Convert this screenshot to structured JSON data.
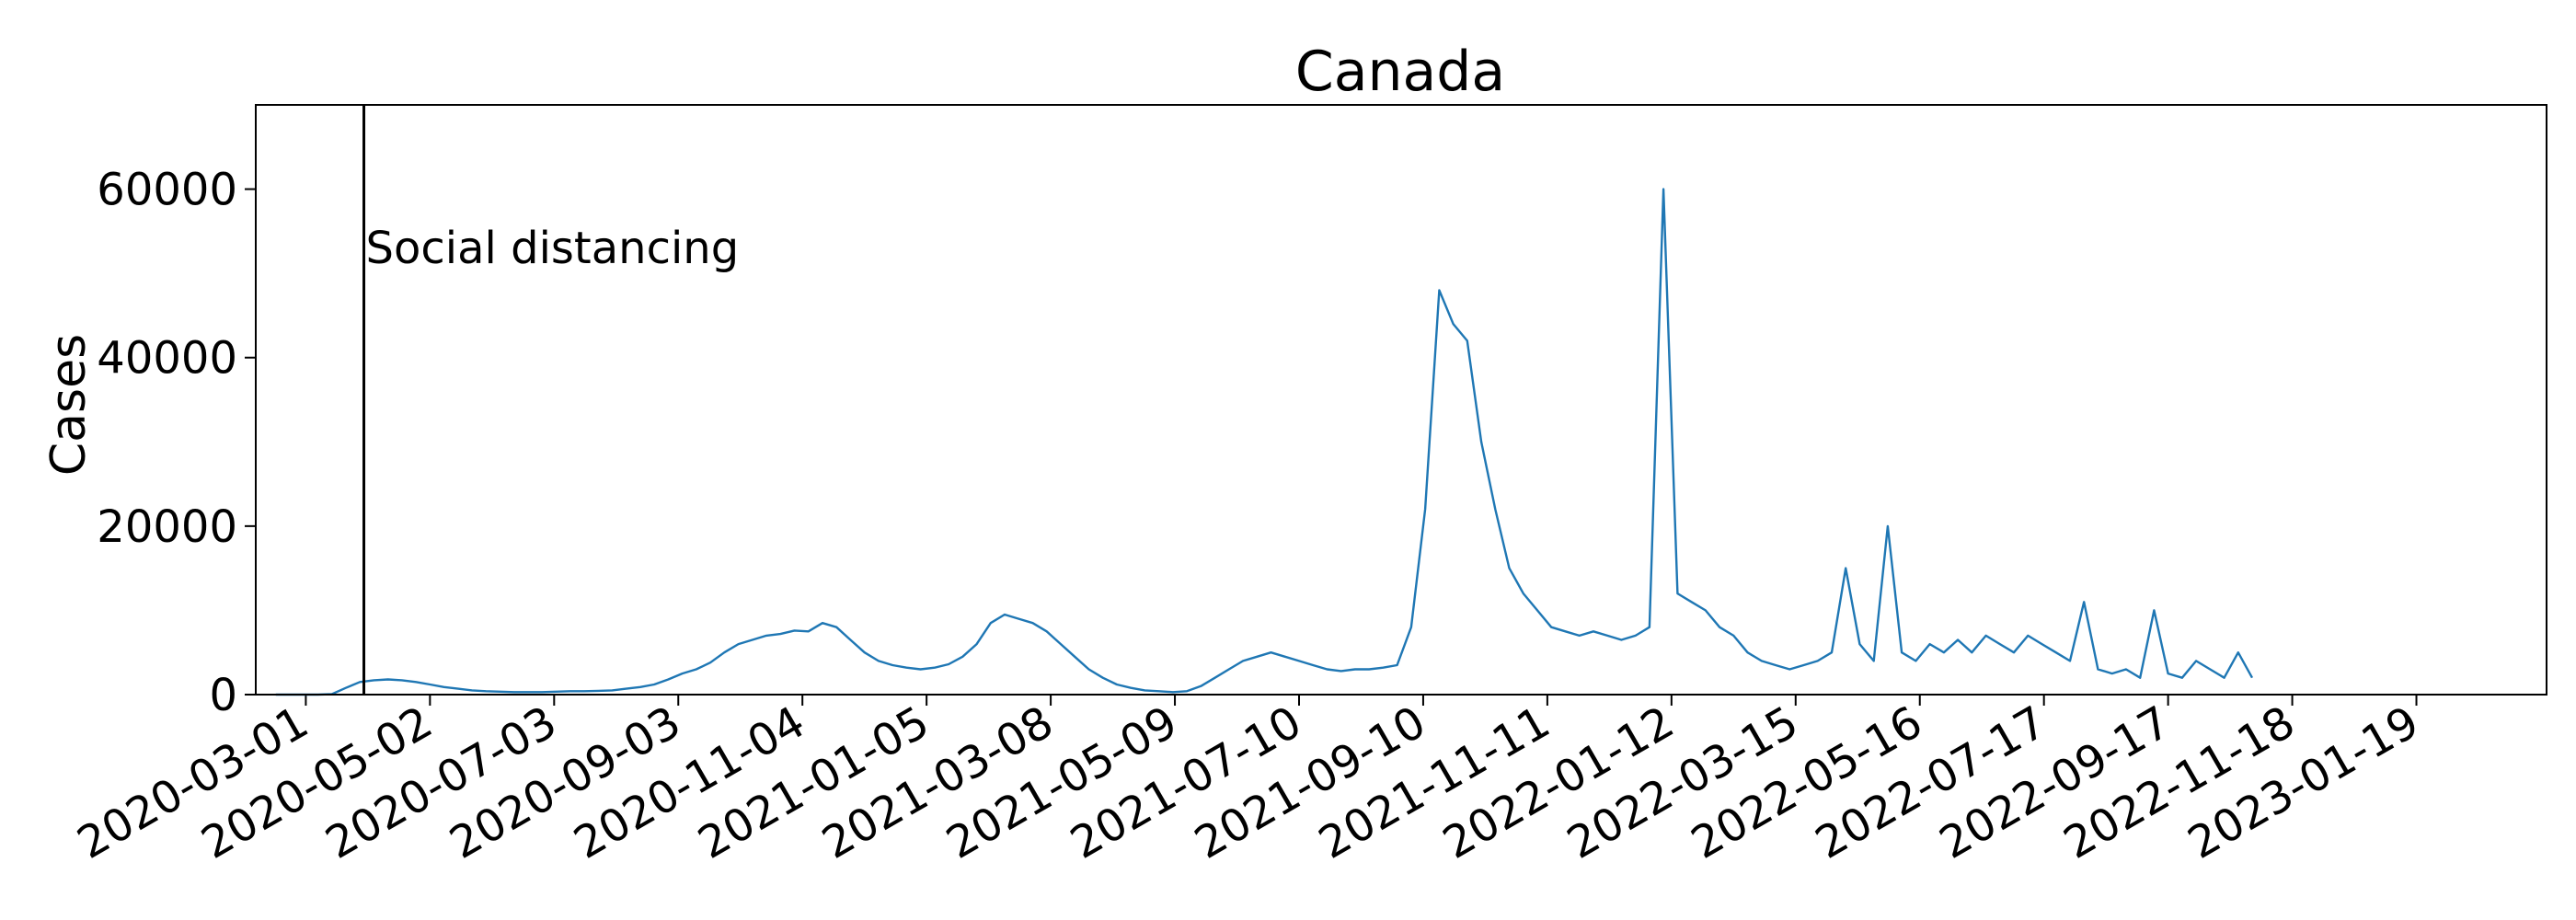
{
  "chart_data": {
    "type": "line",
    "title": "Canada",
    "xlabel": "",
    "ylabel": "Cases",
    "x_start": "2020-02-15",
    "x_end": "2023-03-25",
    "xlim": [
      "2020-02-05",
      "2023-03-25"
    ],
    "ylim": [
      0,
      70000
    ],
    "yticks": [
      0,
      20000,
      40000,
      60000
    ],
    "xticks": [
      "2020-03-01",
      "2020-05-02",
      "2020-07-03",
      "2020-09-03",
      "2020-11-04",
      "2021-01-05",
      "2021-03-08",
      "2021-05-09",
      "2021-07-10",
      "2021-09-10",
      "2021-11-11",
      "2022-01-12",
      "2022-03-15",
      "2022-05-16",
      "2022-07-17",
      "2022-09-17",
      "2022-11-18",
      "2023-01-19"
    ],
    "grid": false,
    "series": [
      {
        "color": "#1f77b4",
        "x_step_days": 7,
        "values": [
          0,
          0,
          0,
          0,
          50,
          800,
          1500,
          1700,
          1800,
          1700,
          1500,
          1200,
          900,
          700,
          500,
          400,
          350,
          300,
          300,
          300,
          350,
          400,
          400,
          450,
          500,
          700,
          900,
          1200,
          1800,
          2500,
          3000,
          3800,
          5000,
          6000,
          6500,
          7000,
          7200,
          7600,
          7500,
          8500,
          8000,
          6500,
          5000,
          4000,
          3500,
          3200,
          3000,
          3200,
          3600,
          4500,
          6000,
          8500,
          9500,
          9000,
          8500,
          7500,
          6000,
          4500,
          3000,
          2000,
          1200,
          800,
          500,
          400,
          300,
          400,
          1000,
          2000,
          3000,
          4000,
          4500,
          5000,
          4500,
          4000,
          3500,
          3000,
          2800,
          3000,
          3000,
          3200,
          3500,
          8000,
          22000,
          48000,
          44000,
          42000,
          30000,
          22000,
          15000,
          12000,
          10000,
          8000,
          7500,
          7000,
          7500,
          7000,
          6500,
          7000,
          8000,
          60000,
          12000,
          11000,
          10000,
          8000,
          7000,
          5000,
          4000,
          3500,
          3000,
          3500,
          4000,
          5000,
          15000,
          6000,
          4000,
          20000,
          5000,
          4000,
          6000,
          5000,
          6500,
          5000,
          7000,
          6000,
          5000,
          7000,
          6000,
          5000,
          4000,
          11000,
          3000,
          2500,
          3000,
          2000,
          10000,
          2500,
          2000,
          4000,
          3000,
          2000,
          5000,
          2000
        ]
      }
    ],
    "annotations": [
      {
        "x": "2020-03-30",
        "text": "Social distancing"
      }
    ]
  }
}
